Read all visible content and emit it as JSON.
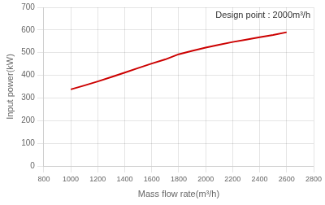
{
  "chart_data": {
    "type": "line",
    "x": [
      1000,
      1100,
      1200,
      1300,
      1400,
      1500,
      1600,
      1700,
      1800,
      1900,
      2000,
      2100,
      2200,
      2300,
      2400,
      2500,
      2600
    ],
    "values": [
      338,
      355,
      373,
      392,
      412,
      432,
      452,
      470,
      493,
      508,
      522,
      535,
      547,
      557,
      568,
      578,
      590
    ],
    "color": "#cc0000",
    "xlabel": "Mass flow rate(m³/h)",
    "ylabel": "Input power(kW)",
    "annotation": "Design point : 2000m³/h",
    "xlim": [
      800,
      2800
    ],
    "ylim": [
      0,
      700
    ],
    "xticks": [
      800,
      1000,
      1200,
      1400,
      1600,
      1800,
      2000,
      2200,
      2400,
      2600,
      2800
    ],
    "yticks": [
      0,
      100,
      200,
      300,
      400,
      500,
      600,
      700
    ],
    "grid": true
  }
}
